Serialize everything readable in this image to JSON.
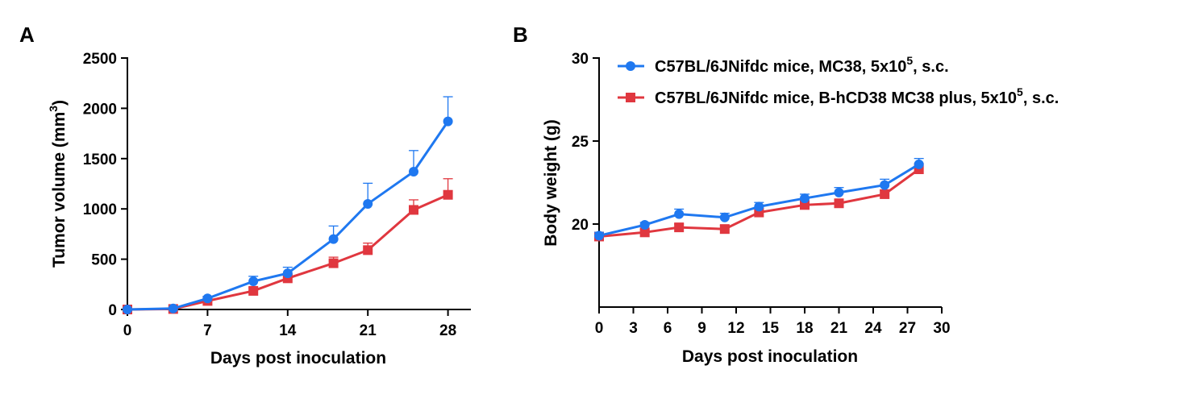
{
  "colors": {
    "series_1": "#1f78f0",
    "series_2": "#e0373f",
    "axis": "#000000"
  },
  "chart_data": [
    {
      "panel": "A",
      "type": "line",
      "title": "",
      "xlabel": "Days post inoculation",
      "ylabel": "Tumor volume (mm",
      "ylabel_sup": "3",
      "ylabel_end": ")",
      "xlim": [
        0,
        30
      ],
      "ylim": [
        0,
        2500
      ],
      "xticks": [
        "0",
        "7",
        "14",
        "21",
        "28"
      ],
      "yticks": [
        "0",
        "500",
        "1000",
        "1500",
        "2000",
        "2500"
      ],
      "grid": false,
      "series": [
        {
          "marker": "circle",
          "x": [
            0,
            4,
            7,
            11,
            14,
            18,
            21,
            25,
            28
          ],
          "y": [
            0,
            10,
            110,
            280,
            360,
            700,
            1050,
            1370,
            1870
          ],
          "err": [
            0,
            5,
            20,
            50,
            60,
            130,
            205,
            210,
            245
          ]
        },
        {
          "marker": "square",
          "x": [
            0,
            4,
            7,
            11,
            14,
            18,
            21,
            25,
            28
          ],
          "y": [
            0,
            5,
            85,
            185,
            310,
            460,
            590,
            990,
            1140
          ],
          "err": [
            0,
            5,
            15,
            30,
            40,
            60,
            70,
            100,
            160
          ]
        }
      ]
    },
    {
      "panel": "B",
      "type": "line",
      "title": "",
      "xlabel": "Days post inoculation",
      "ylabel": "Body weight (g)",
      "xlim": [
        0,
        30
      ],
      "ylim": [
        15,
        30
      ],
      "xticks": [
        "0",
        "3",
        "6",
        "9",
        "12",
        "15",
        "18",
        "21",
        "24",
        "27",
        "30"
      ],
      "yticks": [
        "20",
        "25",
        "30"
      ],
      "grid": false,
      "legend_position": "top-right",
      "series": [
        {
          "marker": "circle",
          "name_pre": "C57BL/6JNifdc mice, MC38, 5x10",
          "name_sup": "5",
          "name_post": ", s.c.",
          "x": [
            0,
            4,
            7,
            11,
            14,
            18,
            21,
            25,
            28
          ],
          "y": [
            19.3,
            19.95,
            20.6,
            20.4,
            21.05,
            21.55,
            21.9,
            22.35,
            23.6
          ],
          "err": [
            0.2,
            0.15,
            0.3,
            0.25,
            0.25,
            0.25,
            0.3,
            0.35,
            0.35
          ]
        },
        {
          "marker": "square",
          "name_pre": "C57BL/6JNifdc mice, B-hCD38 MC38 plus, 5x10",
          "name_sup": "5",
          "name_post": ", s.c.",
          "x": [
            0,
            4,
            7,
            11,
            14,
            18,
            21,
            25,
            28
          ],
          "y": [
            19.25,
            19.5,
            19.8,
            19.7,
            20.7,
            21.15,
            21.25,
            21.8,
            23.3
          ],
          "err": [
            0.2,
            0.15,
            0.2,
            0.2,
            0.2,
            0.2,
            0.2,
            0.25,
            0.35
          ]
        }
      ]
    }
  ]
}
